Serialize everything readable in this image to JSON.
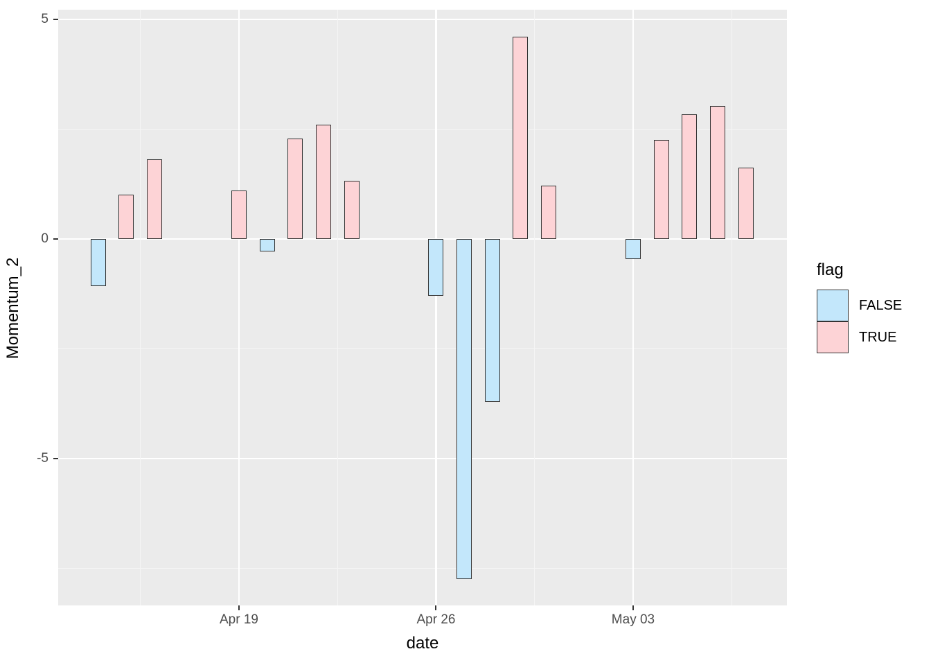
{
  "chart_data": {
    "type": "bar",
    "title": "",
    "xlabel": "date",
    "ylabel": "Momentum_2",
    "x_tick_labels": [
      "Apr 19",
      "Apr 26",
      "May 03"
    ],
    "y_tick_labels": [
      "5",
      "0",
      "-5"
    ],
    "y_ticks": [
      5,
      0,
      -5
    ],
    "y_minor_ticks": [
      2.5,
      -2.5,
      -7.5
    ],
    "ylim": [
      -8.37,
      5.22
    ],
    "grid": "on",
    "legend_position": "right",
    "legend_title": "flag",
    "panel_background": "#EBEBEB",
    "major_grid_color": "#FFFFFF",
    "minor_grid_color": "#F5F5F5",
    "bar_outline_color": "#333333",
    "series_colors": {
      "FALSE": "#C3E7FB",
      "TRUE": "#FDD3D6"
    },
    "bars": [
      {
        "date": "Apr 14",
        "value": -1.07,
        "flag": "FALSE"
      },
      {
        "date": "Apr 15",
        "value": 1.01,
        "flag": "TRUE"
      },
      {
        "date": "Apr 16",
        "value": 1.82,
        "flag": "TRUE"
      },
      {
        "date": "Apr 19",
        "value": 1.11,
        "flag": "TRUE"
      },
      {
        "date": "Apr 20",
        "value": -0.29,
        "flag": "FALSE"
      },
      {
        "date": "Apr 21",
        "value": 2.29,
        "flag": "TRUE"
      },
      {
        "date": "Apr 22",
        "value": 2.6,
        "flag": "TRUE"
      },
      {
        "date": "Apr 23",
        "value": 1.33,
        "flag": "TRUE"
      },
      {
        "date": "Apr 26",
        "value": -1.29,
        "flag": "FALSE"
      },
      {
        "date": "Apr 27",
        "value": -7.74,
        "flag": "FALSE"
      },
      {
        "date": "Apr 28",
        "value": -3.7,
        "flag": "FALSE"
      },
      {
        "date": "Apr 29",
        "value": 4.61,
        "flag": "TRUE"
      },
      {
        "date": "Apr 30",
        "value": 1.21,
        "flag": "TRUE"
      },
      {
        "date": "May 03",
        "value": -0.45,
        "flag": "FALSE"
      },
      {
        "date": "May 04",
        "value": 2.25,
        "flag": "TRUE"
      },
      {
        "date": "May 05",
        "value": 2.84,
        "flag": "TRUE"
      },
      {
        "date": "May 06",
        "value": 3.03,
        "flag": "TRUE"
      },
      {
        "date": "May 07",
        "value": 1.62,
        "flag": "TRUE"
      }
    ]
  },
  "axes": {
    "x_title": "date",
    "y_title": "Momentum_2"
  },
  "legend": {
    "title": "flag",
    "items": [
      {
        "label": "FALSE",
        "color": "#C3E7FB"
      },
      {
        "label": "TRUE",
        "color": "#FDD3D6"
      }
    ]
  }
}
